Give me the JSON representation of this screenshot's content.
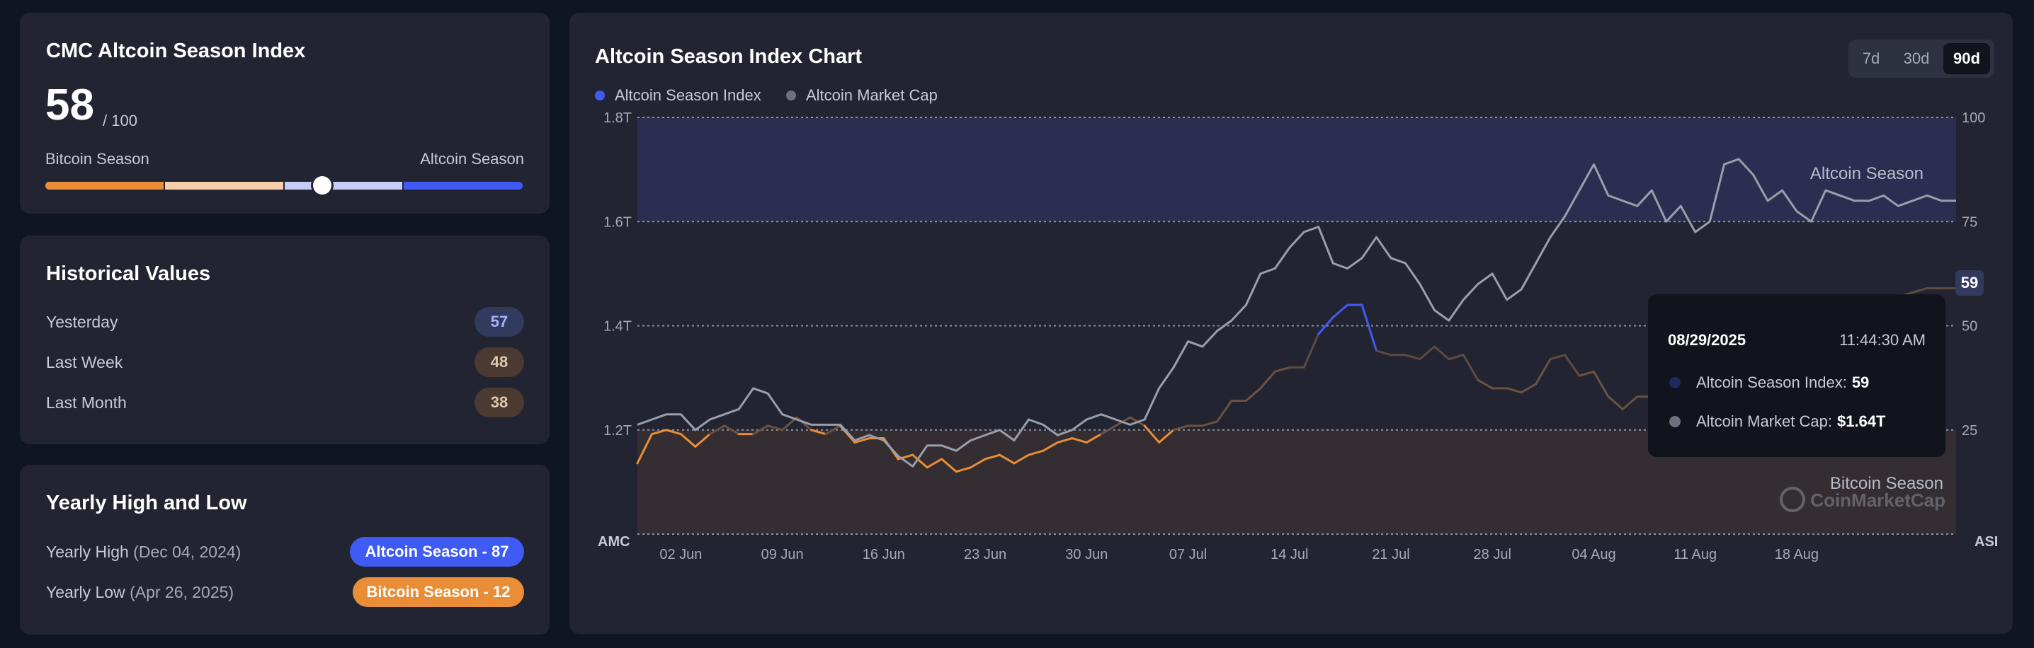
{
  "index_card": {
    "title": "CMC Altcoin Season Index",
    "value": "58",
    "max": "/ 100",
    "value_fraction": 0.58,
    "left_label": "Bitcoin Season",
    "right_label": "Altcoin Season"
  },
  "historical": {
    "title": "Historical Values",
    "rows": [
      {
        "label": "Yesterday",
        "value": "57",
        "tone": "blue"
      },
      {
        "label": "Last Week",
        "value": "48",
        "tone": "brown"
      },
      {
        "label": "Last Month",
        "value": "38",
        "tone": "brown"
      }
    ]
  },
  "yearly": {
    "title": "Yearly High and Low",
    "high": {
      "label": "Yearly High",
      "date": "(Dec 04, 2024)",
      "badge": "Altcoin Season - 87"
    },
    "low": {
      "label": "Yearly Low",
      "date": "(Apr 26, 2025)",
      "badge": "Bitcoin Season - 12"
    }
  },
  "chart_panel": {
    "title": "Altcoin Season Index Chart",
    "tabs": [
      {
        "label": "7d",
        "active": false
      },
      {
        "label": "30d",
        "active": false
      },
      {
        "label": "90d",
        "active": true
      }
    ],
    "legend": [
      {
        "label": "Altcoin Season Index",
        "color": "#3f5bf3"
      },
      {
        "label": "Altcoin Market Cap",
        "color": "#6d7180"
      }
    ],
    "zone_altcoin": "Altcoin Season",
    "zone_bitcoin": "Bitcoin Season",
    "watermark": "CoinMarketCap",
    "current_value": "59",
    "tooltip": {
      "date": "08/29/2025",
      "time": "11:44:30 AM",
      "index_label": "Altcoin Season Index:",
      "index_value": "59",
      "cap_label": "Altcoin Market Cap:",
      "cap_value": "$1.64T"
    }
  },
  "colors": {
    "altcoin_blue": "#3f5bf3",
    "bitcoin_orange": "#e98e36",
    "market_cap_gray": "#9a9eab"
  },
  "chart_data": {
    "type": "line",
    "x": [
      "2025-05-30",
      "2025-05-31",
      "2025-06-01",
      "2025-06-02",
      "2025-06-03",
      "2025-06-04",
      "2025-06-05",
      "2025-06-06",
      "2025-06-07",
      "2025-06-08",
      "2025-06-09",
      "2025-06-10",
      "2025-06-11",
      "2025-06-12",
      "2025-06-13",
      "2025-06-14",
      "2025-06-15",
      "2025-06-16",
      "2025-06-17",
      "2025-06-18",
      "2025-06-19",
      "2025-06-20",
      "2025-06-21",
      "2025-06-22",
      "2025-06-23",
      "2025-06-24",
      "2025-06-25",
      "2025-06-26",
      "2025-06-27",
      "2025-06-28",
      "2025-06-29",
      "2025-06-30",
      "2025-07-01",
      "2025-07-02",
      "2025-07-03",
      "2025-07-04",
      "2025-07-05",
      "2025-07-06",
      "2025-07-07",
      "2025-07-08",
      "2025-07-09",
      "2025-07-10",
      "2025-07-11",
      "2025-07-12",
      "2025-07-13",
      "2025-07-14",
      "2025-07-15",
      "2025-07-16",
      "2025-07-17",
      "2025-07-18",
      "2025-07-19",
      "2025-07-20",
      "2025-07-21",
      "2025-07-22",
      "2025-07-23",
      "2025-07-24",
      "2025-07-25",
      "2025-07-26",
      "2025-07-27",
      "2025-07-28",
      "2025-07-29",
      "2025-07-30",
      "2025-07-31",
      "2025-08-01",
      "2025-08-02",
      "2025-08-03",
      "2025-08-04",
      "2025-08-05",
      "2025-08-06",
      "2025-08-07",
      "2025-08-08",
      "2025-08-09",
      "2025-08-10",
      "2025-08-11",
      "2025-08-12",
      "2025-08-13",
      "2025-08-14",
      "2025-08-15",
      "2025-08-16",
      "2025-08-17",
      "2025-08-18",
      "2025-08-19",
      "2025-08-20",
      "2025-08-21",
      "2025-08-22",
      "2025-08-23",
      "2025-08-24",
      "2025-08-25",
      "2025-08-26",
      "2025-08-27",
      "2025-08-28",
      "2025-08-29"
    ],
    "series": [
      {
        "name": "Altcoin Season Index",
        "axis": "right",
        "values": [
          17,
          24,
          25,
          24,
          21,
          24,
          26,
          24,
          24,
          26,
          25,
          28,
          25,
          24,
          26,
          22,
          23,
          23,
          18,
          19,
          16,
          18,
          15,
          16,
          18,
          19,
          17,
          19,
          20,
          22,
          23,
          22,
          24,
          26,
          28,
          26,
          22,
          25,
          26,
          26,
          27,
          32,
          32,
          35,
          39,
          40,
          40,
          48,
          52,
          55,
          55,
          44,
          43,
          43,
          42,
          45,
          42,
          43,
          37,
          35,
          35,
          34,
          36,
          42,
          43,
          38,
          39,
          33,
          30,
          33,
          33,
          30,
          35,
          33,
          28,
          29,
          33,
          39,
          41,
          41,
          42,
          44,
          48,
          52,
          54,
          57,
          55,
          57,
          58,
          59,
          59,
          59
        ]
      },
      {
        "name": "Altcoin Market Cap",
        "axis": "left",
        "values": [
          1.21,
          1.22,
          1.23,
          1.23,
          1.2,
          1.22,
          1.23,
          1.24,
          1.28,
          1.27,
          1.23,
          1.22,
          1.21,
          1.21,
          1.21,
          1.18,
          1.19,
          1.18,
          1.15,
          1.13,
          1.17,
          1.17,
          1.16,
          1.18,
          1.19,
          1.2,
          1.18,
          1.22,
          1.21,
          1.19,
          1.2,
          1.22,
          1.23,
          1.22,
          1.21,
          1.22,
          1.28,
          1.32,
          1.37,
          1.36,
          1.39,
          1.41,
          1.44,
          1.5,
          1.51,
          1.55,
          1.58,
          1.59,
          1.52,
          1.51,
          1.53,
          1.57,
          1.53,
          1.52,
          1.48,
          1.43,
          1.41,
          1.45,
          1.48,
          1.5,
          1.45,
          1.47,
          1.52,
          1.57,
          1.61,
          1.66,
          1.71,
          1.65,
          1.64,
          1.63,
          1.66,
          1.6,
          1.63,
          1.58,
          1.6,
          1.71,
          1.72,
          1.69,
          1.64,
          1.66,
          1.62,
          1.6,
          1.66,
          1.65,
          1.64,
          1.64,
          1.65,
          1.63,
          1.64,
          1.65,
          1.64,
          1.64
        ]
      }
    ],
    "x_tick_labels": [
      "02 Jun",
      "09 Jun",
      "16 Jun",
      "23 Jun",
      "30 Jun",
      "07 Jul",
      "14 Jul",
      "21 Jul",
      "28 Jul",
      "04 Aug",
      "11 Aug",
      "18 Aug"
    ],
    "left_axis": {
      "label": "AMC",
      "ticks": [
        "1.2T",
        "1.4T",
        "1.6T",
        "1.8T"
      ],
      "range": [
        1.0,
        1.8
      ]
    },
    "right_axis": {
      "label": "ASI",
      "ticks": [
        "25",
        "50",
        "75",
        "100"
      ],
      "range": [
        0,
        100
      ]
    },
    "zones": [
      {
        "label": "Altcoin Season",
        "from": 75,
        "to": 100
      },
      {
        "label": "Bitcoin Season",
        "from": 0,
        "to": 25
      }
    ],
    "grid": true,
    "legend_position": "top-left"
  }
}
